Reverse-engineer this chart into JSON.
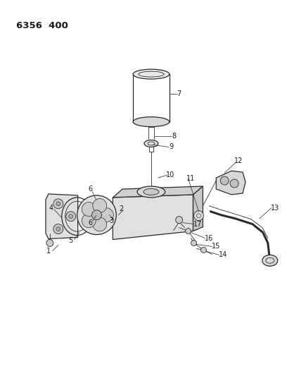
{
  "title": "6356  400",
  "background_color": "#ffffff",
  "line_color": "#2a2a2a",
  "text_color": "#1a1a1a",
  "fig_width": 4.08,
  "fig_height": 5.33,
  "dpi": 100
}
